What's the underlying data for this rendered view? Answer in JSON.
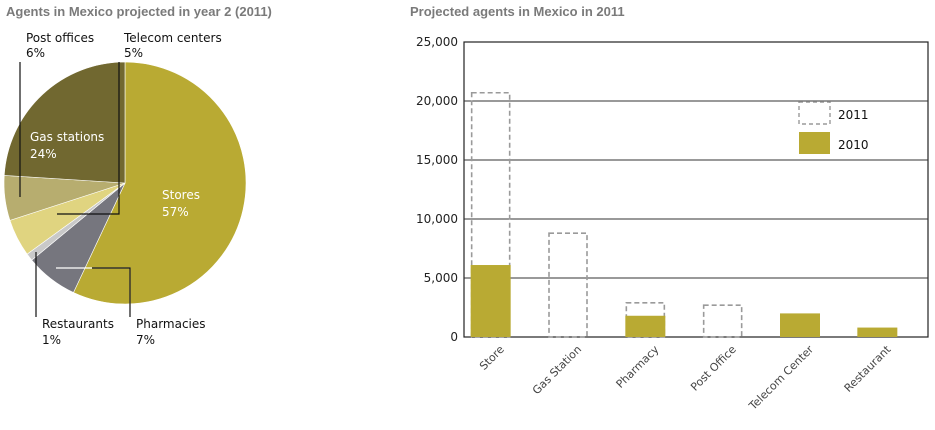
{
  "chart_data": [
    {
      "type": "pie",
      "title": "Agents in Mexico projected in year 2 (2011)",
      "slices": [
        {
          "label": "Stores",
          "value": 57,
          "value_label": "57%",
          "color": "#b9aa33"
        },
        {
          "label": "Pharmacies",
          "value": 7,
          "value_label": "7%",
          "color": "#76767e"
        },
        {
          "label": "Restaurants",
          "value": 1,
          "value_label": "1%",
          "color": "#c9c9c9"
        },
        {
          "label": "Telecom centers",
          "value": 5,
          "value_label": "5%",
          "color": "#e0d480"
        },
        {
          "label": "Post offices",
          "value": 6,
          "value_label": "6%",
          "color": "#b7ad6f"
        },
        {
          "label": "Gas stations",
          "value": 24,
          "value_label": "24%",
          "color": "#716830"
        }
      ]
    },
    {
      "type": "bar",
      "title": "Projected agents in Mexico in 2011",
      "categories": [
        "Store",
        "Gas Station",
        "Pharmacy",
        "Post Office",
        "Telecom Center",
        "Restaurant"
      ],
      "series": [
        {
          "name": "2011",
          "values": [
            20700,
            8800,
            2900,
            2700,
            0,
            0
          ],
          "style": "dashed-outline",
          "color": "#9a9a9a"
        },
        {
          "name": "2010",
          "values": [
            6100,
            0,
            1800,
            0,
            2000,
            800
          ],
          "style": "filled",
          "color": "#b9aa33"
        }
      ],
      "yticks": [
        "0",
        "5,000",
        "10,000",
        "15,000",
        "20,000",
        "25,000"
      ],
      "ylim": [
        0,
        25000
      ],
      "legend": "top-right",
      "grid": true
    }
  ]
}
